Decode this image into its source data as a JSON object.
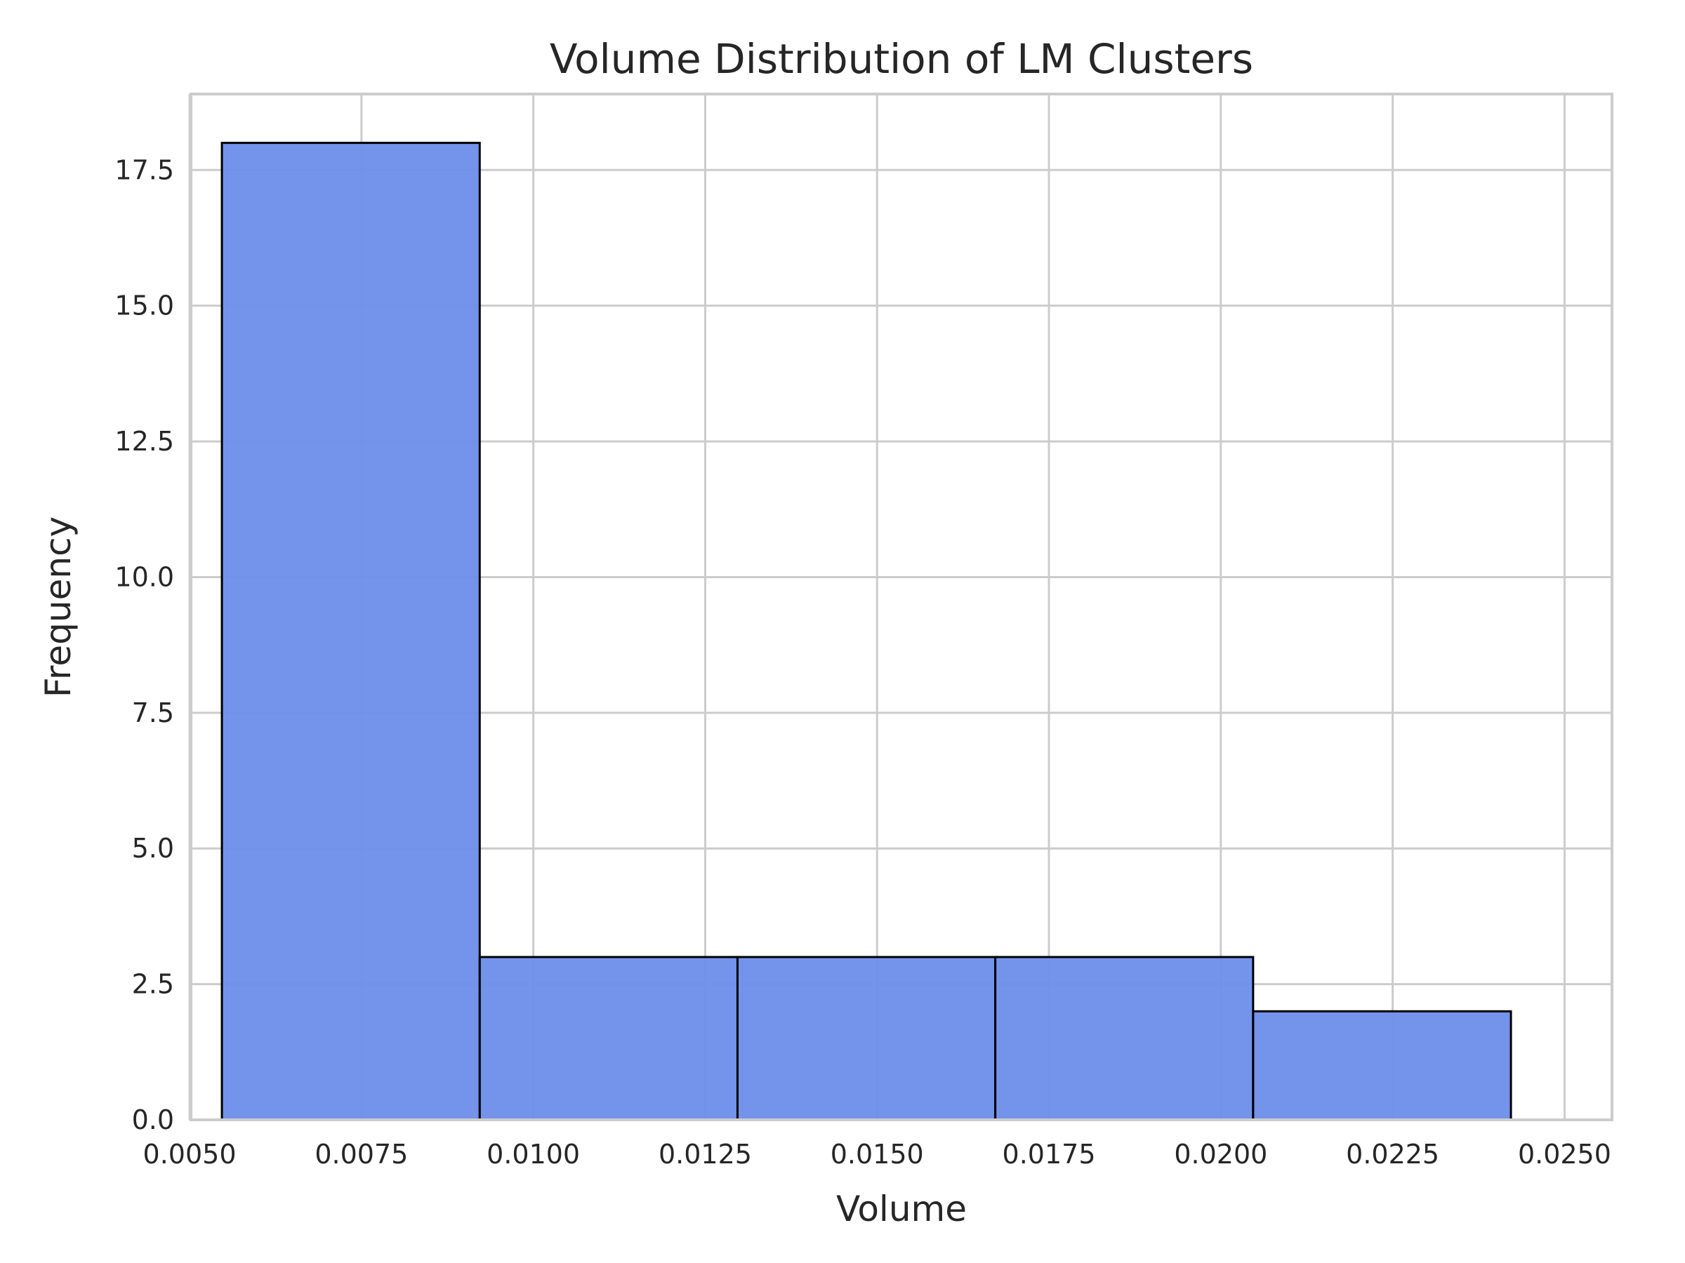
{
  "chart_data": {
    "type": "bar",
    "subtype": "histogram",
    "title": "Volume Distribution of LM Clusters",
    "xlabel": "Volume",
    "ylabel": "Frequency",
    "bins": [
      {
        "x0": 0.00547,
        "x1": 0.00922,
        "count": 18
      },
      {
        "x0": 0.00922,
        "x1": 0.01297,
        "count": 3
      },
      {
        "x0": 0.01297,
        "x1": 0.01672,
        "count": 3
      },
      {
        "x0": 0.01672,
        "x1": 0.02047,
        "count": 3
      },
      {
        "x0": 0.02047,
        "x1": 0.02422,
        "count": 2
      }
    ],
    "xlim": [
      0.00502,
      0.02569
    ],
    "ylim": [
      0,
      18.9
    ],
    "xticks": [
      0.005,
      0.0075,
      0.01,
      0.0125,
      0.015,
      0.0175,
      0.02,
      0.0225,
      0.025
    ],
    "xtick_labels": [
      "0.0050",
      "0.0075",
      "0.0100",
      "0.0125",
      "0.0150",
      "0.0175",
      "0.0200",
      "0.0225",
      "0.0250"
    ],
    "yticks": [
      0,
      2.5,
      5,
      7.5,
      10,
      12.5,
      15,
      17.5
    ],
    "ytick_labels": [
      "0.0",
      "2.5",
      "5.0",
      "7.5",
      "10.0",
      "12.5",
      "15.0",
      "17.5"
    ],
    "grid": true,
    "bar_color": "#6d8de9",
    "edge_color": "#000000"
  }
}
